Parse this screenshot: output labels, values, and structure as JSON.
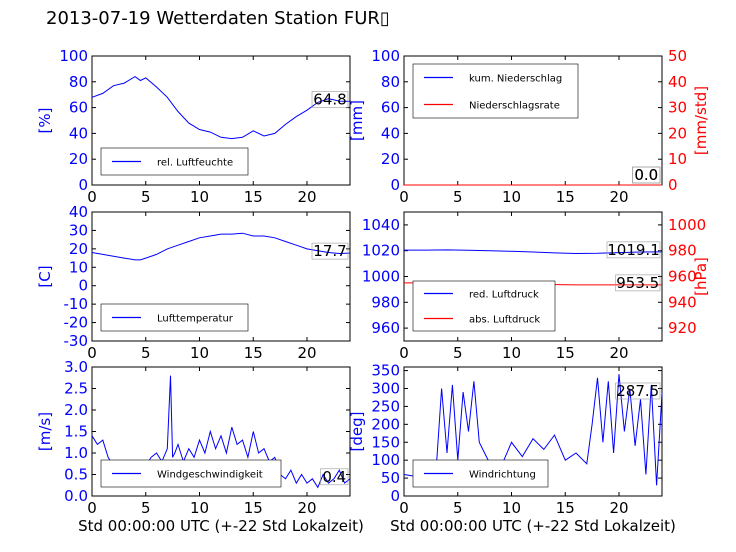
{
  "title": "2013-07-19 Wetterdaten Station FUR▯",
  "xlabel": "Std 00:00:00 UTC (+-22 Std Lokalzeit)",
  "colors": {
    "left_axis": "#0000ff",
    "right_axis": "#ff0000",
    "line1": "#0000ff",
    "line2": "#ff0000",
    "text": "#000000"
  },
  "chart_data": [
    {
      "id": "humidity",
      "type": "line",
      "xlim": [
        0,
        24
      ],
      "ylim": [
        0,
        100
      ],
      "xticks": [
        0,
        5,
        10,
        15,
        20
      ],
      "yticks": [
        0,
        20,
        40,
        60,
        80,
        100
      ],
      "ylabel": "[%]",
      "legend_placement": "lower-left",
      "last_value_label": "64.8",
      "series": [
        {
          "name": "rel. Luftfeuchte",
          "color": "#0000ff",
          "x": [
            0,
            1,
            2,
            3,
            4,
            4.5,
            5,
            6,
            7,
            8,
            9,
            10,
            11,
            12,
            13,
            14,
            15,
            16,
            17,
            18,
            19,
            20,
            21,
            22,
            23,
            24
          ],
          "y": [
            68,
            71,
            77,
            79,
            84,
            81,
            83,
            76,
            68,
            57,
            48,
            43,
            41,
            37,
            36,
            37,
            42,
            38,
            40,
            47,
            53,
            58,
            64,
            67,
            65,
            64.8
          ]
        }
      ]
    },
    {
      "id": "precipitation",
      "type": "line",
      "xlim": [
        0,
        24
      ],
      "ylim": [
        0,
        100
      ],
      "y2lim": [
        0,
        50
      ],
      "xticks": [
        0,
        5,
        10,
        15,
        20
      ],
      "yticks": [
        0,
        20,
        40,
        60,
        80,
        100
      ],
      "y2ticks": [
        0,
        10,
        20,
        30,
        40,
        50
      ],
      "ylabel": "[mm]",
      "y2label": "[mm/std]",
      "legend_placement": "upper-left",
      "last_value_labels": [
        "0.0",
        "0.0"
      ],
      "series": [
        {
          "name": "kum. Niederschlag",
          "color": "#0000ff",
          "axis": "left",
          "x": [
            0,
            24
          ],
          "y": [
            0,
            0
          ]
        },
        {
          "name": "Niederschlagsrate",
          "color": "#ff0000",
          "axis": "right",
          "x": [
            0,
            24
          ],
          "y": [
            0,
            0
          ]
        }
      ]
    },
    {
      "id": "temperature",
      "type": "line",
      "xlim": [
        0,
        24
      ],
      "ylim": [
        -30,
        40
      ],
      "xticks": [
        0,
        5,
        10,
        15,
        20
      ],
      "yticks": [
        -30,
        -20,
        -10,
        0,
        10,
        20,
        30,
        40
      ],
      "ylabel": "[C]",
      "legend_placement": "lower-left",
      "last_value_label": "17.7",
      "series": [
        {
          "name": "Lufttemperatur",
          "color": "#0000ff",
          "x": [
            0,
            1,
            2,
            3,
            4,
            4.5,
            5,
            6,
            7,
            8,
            9,
            10,
            11,
            12,
            13,
            14,
            15,
            16,
            17,
            18,
            19,
            20,
            21,
            22,
            23,
            24
          ],
          "y": [
            18,
            17,
            16,
            15,
            14,
            14,
            15,
            17,
            20,
            22,
            24,
            26,
            27,
            28,
            28,
            28.5,
            27,
            27,
            26,
            24,
            22,
            20,
            19,
            18,
            17.5,
            17.7
          ]
        }
      ]
    },
    {
      "id": "pressure",
      "type": "line",
      "xlim": [
        0,
        24
      ],
      "ylim": [
        950,
        1050
      ],
      "y2lim": [
        910,
        1010
      ],
      "xticks": [
        0,
        5,
        10,
        15,
        20
      ],
      "yticks": [
        960,
        980,
        1000,
        1020,
        1040
      ],
      "y2ticks": [
        920,
        940,
        960,
        980,
        1000
      ],
      "ylabel": "",
      "y2label": "[hPa]",
      "legend_placement": "lower-left",
      "last_value_labels": [
        "1019.1",
        "953.5"
      ],
      "series": [
        {
          "name": "red. Luftdruck",
          "color": "#0000ff",
          "axis": "left",
          "x": [
            0,
            2,
            4,
            6,
            8,
            10,
            12,
            14,
            16,
            18,
            20,
            22,
            24
          ],
          "y": [
            1020.5,
            1020.5,
            1020.6,
            1020.4,
            1020.0,
            1019.5,
            1019.0,
            1018.3,
            1017.8,
            1018.0,
            1018.5,
            1019.0,
            1019.1
          ]
        },
        {
          "name": "abs. Luftdruck",
          "color": "#ff0000",
          "axis": "right",
          "x": [
            0,
            4,
            8,
            12,
            16,
            20,
            24
          ],
          "y": [
            955,
            955,
            954.5,
            954,
            953.5,
            953.5,
            953.5
          ]
        }
      ]
    },
    {
      "id": "windspeed",
      "type": "line",
      "xlim": [
        0,
        24
      ],
      "ylim": [
        0,
        3
      ],
      "xticks": [
        0,
        5,
        10,
        15,
        20
      ],
      "yticks": [
        0,
        0.5,
        1.0,
        1.5,
        2.0,
        2.5,
        3.0
      ],
      "ylabel": "[m/s]",
      "xlabel": "Std 00:00:00 UTC (+-22 Std Lokalzeit)",
      "legend_placement": "lower-left",
      "last_value_label": "0.4",
      "series": [
        {
          "name": "Windgeschwindigkeit",
          "color": "#0000ff",
          "x": [
            0,
            0.5,
            1,
            1.5,
            2,
            2.5,
            3,
            3.5,
            4,
            4.5,
            5,
            5.5,
            6,
            6.5,
            7,
            7.3,
            7.5,
            7.7,
            8,
            8.5,
            9,
            9.5,
            10,
            10.5,
            11,
            11.5,
            12,
            12.5,
            13,
            13.5,
            14,
            14.5,
            15,
            15.5,
            16,
            16.5,
            17,
            17.5,
            18,
            18.5,
            19,
            19.5,
            20,
            20.5,
            21,
            21.5,
            22,
            22.5,
            23,
            23.5,
            24
          ],
          "y": [
            1.4,
            1.2,
            1.3,
            0.9,
            0.7,
            0.4,
            0.3,
            0.6,
            0.5,
            0.8,
            0.7,
            0.9,
            1.0,
            0.8,
            1.1,
            2.8,
            0.9,
            1.0,
            1.2,
            0.8,
            1.1,
            0.9,
            1.3,
            1.0,
            1.5,
            1.1,
            1.4,
            1.0,
            1.6,
            1.2,
            1.3,
            0.9,
            1.5,
            1.0,
            1.1,
            0.8,
            0.9,
            0.5,
            0.4,
            0.6,
            0.3,
            0.5,
            0.3,
            0.4,
            0.2,
            0.5,
            0.3,
            0.4,
            0.6,
            0.3,
            0.4
          ]
        }
      ]
    },
    {
      "id": "winddirection",
      "type": "line",
      "xlim": [
        0,
        24
      ],
      "ylim": [
        0,
        360
      ],
      "xticks": [
        0,
        5,
        10,
        15,
        20
      ],
      "yticks": [
        0,
        50,
        100,
        150,
        200,
        250,
        300,
        350
      ],
      "ylabel": "[deg]",
      "xlabel": "Std 00:00:00 UTC (+-22 Std Lokalzeit)",
      "legend_placement": "lower-left",
      "last_value_label": "287.5",
      "series": [
        {
          "name": "Windrichtung",
          "color": "#0000ff",
          "x": [
            0,
            1,
            2,
            3,
            3.5,
            4,
            4.5,
            5,
            5.5,
            6,
            6.5,
            7,
            7.5,
            8,
            9,
            10,
            11,
            12,
            13,
            14,
            15,
            16,
            17,
            17.5,
            18,
            18.5,
            19,
            19.5,
            20,
            20.5,
            21,
            21.5,
            22,
            22.5,
            23,
            23.5,
            24
          ],
          "y": [
            60,
            55,
            60,
            80,
            300,
            120,
            310,
            100,
            290,
            180,
            320,
            150,
            120,
            90,
            80,
            150,
            110,
            160,
            130,
            170,
            100,
            120,
            90,
            200,
            330,
            150,
            320,
            120,
            340,
            180,
            300,
            140,
            270,
            60,
            310,
            30,
            287.5
          ]
        }
      ]
    }
  ]
}
